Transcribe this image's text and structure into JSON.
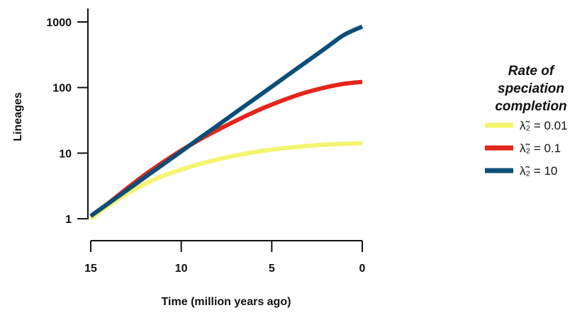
{
  "chart_data": {
    "type": "line",
    "xlabel": "Time (million years ago)",
    "ylabel": "Lineages",
    "x_axis": {
      "reversed": true,
      "xlim": [
        15,
        0
      ],
      "ticks": [
        15,
        10,
        5,
        0
      ],
      "tick_labels": [
        "15",
        "10",
        "5",
        "0"
      ]
    },
    "y_axis": {
      "scale": "log",
      "ylim": [
        1,
        1000
      ],
      "ticks": [
        1,
        10,
        100,
        1000
      ],
      "tick_labels": [
        "1",
        "10",
        "100",
        "1000"
      ]
    },
    "grid": false,
    "legend": {
      "title": "Rate of speciation completion",
      "title_lines": [
        "Rate",
        "of",
        "speciation",
        "completion"
      ],
      "placement": "right"
    },
    "x": [
      15,
      14,
      13,
      12,
      11,
      10,
      9,
      8,
      7,
      6,
      5,
      4,
      3,
      2,
      1,
      0
    ],
    "series": [
      {
        "name": "λ̃₂ = 0.01",
        "color": "#f4f46e",
        "values": [
          1.0,
          1.6,
          2.4,
          3.4,
          4.5,
          5.6,
          6.8,
          8.0,
          9.2,
          10.3,
          11.3,
          12.2,
          12.9,
          13.5,
          13.9,
          14.2
        ]
      },
      {
        "name": "λ̃₂ = 0.1",
        "color": "#e2261b",
        "values": [
          1.1,
          1.75,
          2.9,
          4.7,
          7.3,
          11.0,
          16.0,
          22.5,
          31.0,
          42.0,
          55.0,
          70.0,
          86.0,
          101.0,
          114.0,
          122.0
        ]
      },
      {
        "name": "λ̃₂ = 10",
        "color": "#0b4e78",
        "values": [
          1.1,
          1.73,
          2.72,
          4.3,
          6.75,
          10.6,
          16.8,
          26.4,
          41.6,
          65.5,
          103.0,
          163.0,
          256.0,
          404.0,
          636.0,
          850.0
        ]
      }
    ]
  }
}
